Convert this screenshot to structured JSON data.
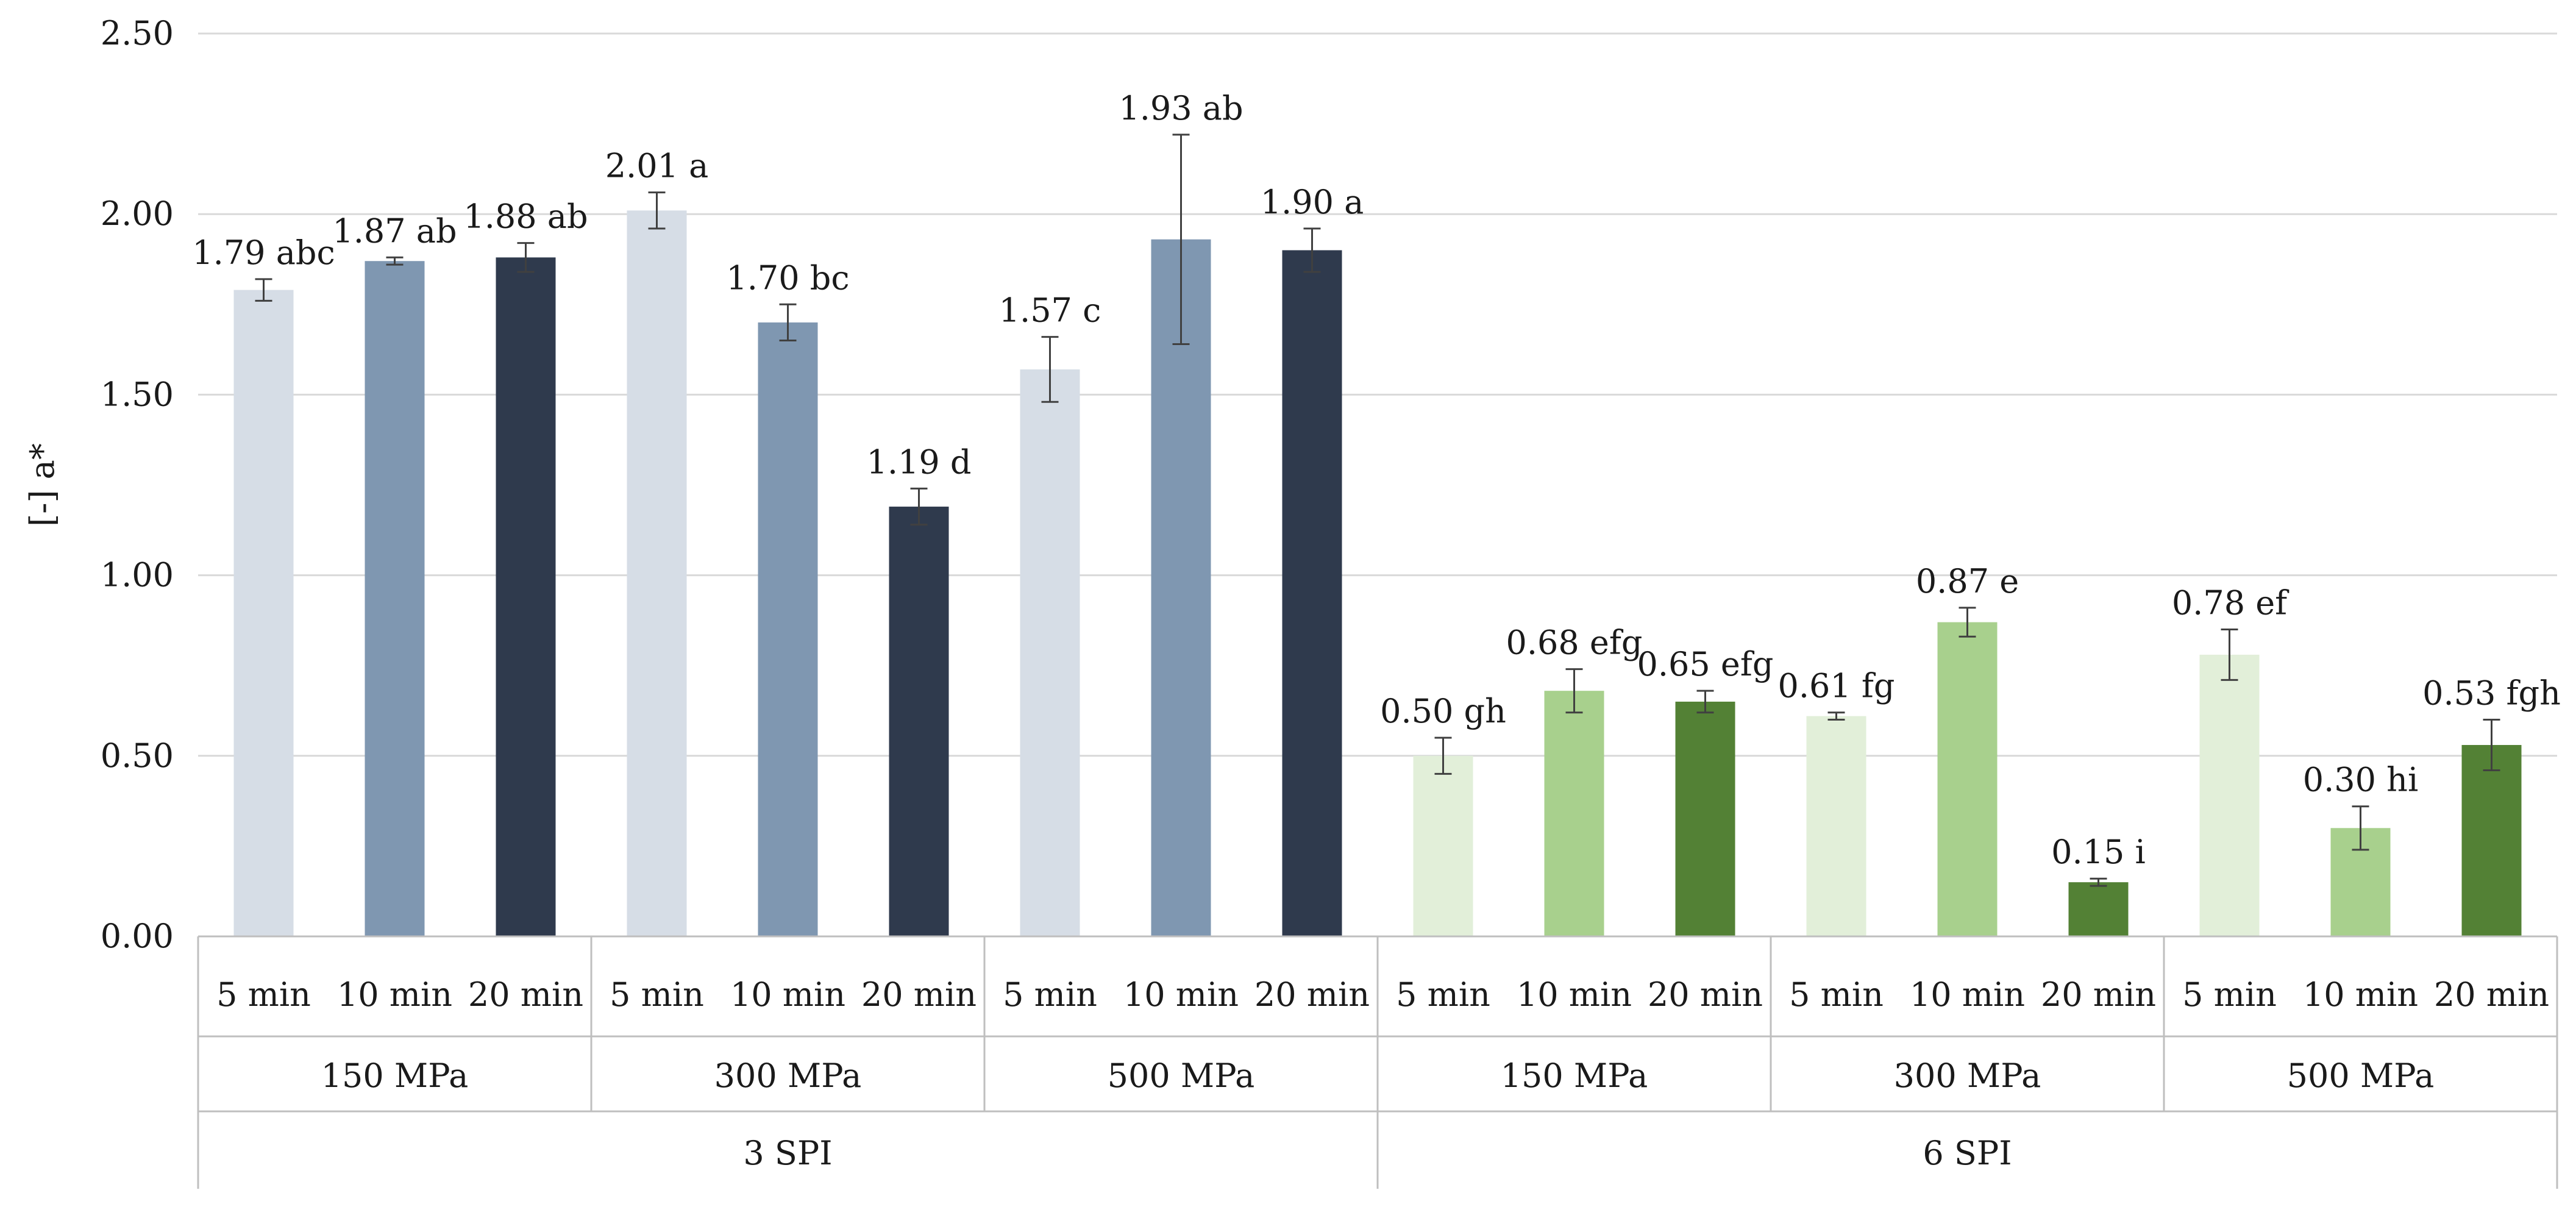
{
  "chart_data": {
    "type": "bar",
    "ylabel": "[-] a*",
    "xlabel": "",
    "ylim": [
      0,
      2.5
    ],
    "yticks": [
      "0.00",
      "0.50",
      "1.00",
      "1.50",
      "2.00",
      "2.50"
    ],
    "grid": true,
    "categories": [
      "5 min",
      "10 min",
      "20 min",
      "5 min",
      "10 min",
      "20 min",
      "5 min",
      "10 min",
      "20 min",
      "5 min",
      "10 min",
      "20 min",
      "5 min",
      "10 min",
      "20 min",
      "5 min",
      "10 min",
      "20 min"
    ],
    "pressure_groups": [
      "150 MPa",
      "300 MPa",
      "500 MPa",
      "150 MPa",
      "300 MPa",
      "500 MPa"
    ],
    "spi_groups": [
      "3 SPI",
      "6 SPI"
    ],
    "values": [
      1.79,
      1.87,
      1.88,
      2.01,
      1.7,
      1.19,
      1.57,
      1.93,
      1.9,
      0.5,
      0.68,
      0.65,
      0.61,
      0.87,
      0.15,
      0.78,
      0.3,
      0.53
    ],
    "errors": [
      0.03,
      0.01,
      0.04,
      0.05,
      0.05,
      0.05,
      0.09,
      0.29,
      0.06,
      0.05,
      0.06,
      0.03,
      0.01,
      0.04,
      0.01,
      0.07,
      0.06,
      0.07
    ],
    "data_labels": [
      "1.79 abc",
      "1.87 ab",
      "1.88 ab",
      "2.01 a",
      "1.70 bc",
      "1.19 d",
      "1.57 c",
      "1.93 ab",
      "1.90 a",
      "0.50 gh",
      "0.68 efg",
      "0.65 efg",
      "0.61 fg",
      "0.87 e",
      "0.15 i",
      "0.78 ef",
      "0.30 hi",
      "0.53 fgh"
    ],
    "series_colors": {
      "3 SPI": [
        "#d6dde6",
        "#7f97b1",
        "#2f3a4d"
      ],
      "6 SPI": [
        "#e2efd9",
        "#a8d08d",
        "#538135"
      ]
    },
    "gridline_color": "#d9d9d9",
    "axis_color": "#bfbfbf"
  }
}
